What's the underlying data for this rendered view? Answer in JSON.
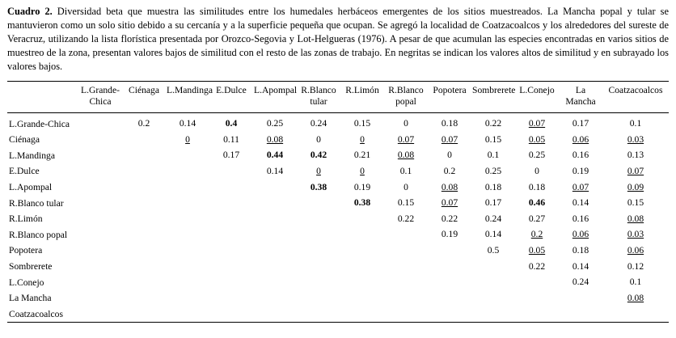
{
  "caption": {
    "label": "Cuadro 2.",
    "text": "Diversidad beta que muestra las similitudes entre los humedales herbáceos emergentes de los sitios muestreados. La Mancha popal y tular se mantuvieron como un solo sitio debido a su cercanía y a la superficie pequeña que ocupan. Se agregó la localidad de Coatzacoalcos y los alrededores del sureste de Veracruz, utilizando la lista florística presentada por Orozco-Segovia y Lot-Helgueras (1976). A pesar de que acumulan las especies encontradas en varios sitios de muestreo de la zona, presentan valores bajos de similitud con el resto de las zonas de trabajo. En negritas se indican los valores altos de similitud y en subrayado los valores bajos."
  },
  "table": {
    "emphasis_note": {
      "high": "negritas = valores altos de similitud",
      "low": "subrayado = valores bajos"
    },
    "columns": [
      "L.Grande-Chica",
      "Ciénaga",
      "L.Mandinga",
      "E.Dulce",
      "L.Apompal",
      "R.Blanco tular",
      "R.Limón",
      "R.Blanco popal",
      "Popotera",
      "Sombrerete",
      "L.Conejo",
      "La Mancha",
      "Coatzacoalcos"
    ],
    "rows": [
      {
        "label": "L.Grande-Chica",
        "cells": [
          null,
          "0.2",
          "0.14",
          {
            "v": "0.4",
            "e": "high"
          },
          "0.25",
          "0.24",
          "0.15",
          "0",
          "0.18",
          "0.22",
          {
            "v": "0.07",
            "e": "low"
          },
          "0.17",
          "0.1"
        ]
      },
      {
        "label": "Ciénaga",
        "cells": [
          null,
          null,
          {
            "v": "0",
            "e": "low"
          },
          "0.11",
          {
            "v": "0.08",
            "e": "low"
          },
          "0",
          {
            "v": "0",
            "e": "low"
          },
          {
            "v": "0.07",
            "e": "low"
          },
          {
            "v": "0.07",
            "e": "low"
          },
          "0.15",
          {
            "v": "0.05",
            "e": "low"
          },
          {
            "v": "0.06",
            "e": "low"
          },
          {
            "v": "0.03",
            "e": "low"
          }
        ]
      },
      {
        "label": "L.Mandinga",
        "cells": [
          null,
          null,
          null,
          "0.17",
          {
            "v": "0.44",
            "e": "high"
          },
          {
            "v": "0.42",
            "e": "high"
          },
          "0.21",
          {
            "v": "0.08",
            "e": "low"
          },
          "0",
          "0.1",
          "0.25",
          "0.16",
          "0.13"
        ]
      },
      {
        "label": "E.Dulce",
        "cells": [
          null,
          null,
          null,
          null,
          "0.14",
          {
            "v": "0",
            "e": "low"
          },
          {
            "v": "0",
            "e": "low"
          },
          "0.1",
          "0.2",
          "0.25",
          "0",
          "0.19",
          {
            "v": "0.07",
            "e": "low"
          }
        ]
      },
      {
        "label": "L.Apompal",
        "cells": [
          null,
          null,
          null,
          null,
          null,
          {
            "v": "0.38",
            "e": "high"
          },
          "0.19",
          "0",
          {
            "v": "0.08",
            "e": "low"
          },
          "0.18",
          "0.18",
          {
            "v": "0.07",
            "e": "low"
          },
          {
            "v": "0.09",
            "e": "low"
          }
        ]
      },
      {
        "label": "R.Blanco tular",
        "cells": [
          null,
          null,
          null,
          null,
          null,
          null,
          {
            "v": "0.38",
            "e": "high"
          },
          "0.15",
          {
            "v": "0.07",
            "e": "low"
          },
          "0.17",
          {
            "v": "0.46",
            "e": "high"
          },
          "0.14",
          "0.15"
        ]
      },
      {
        "label": "R.Limón",
        "cells": [
          null,
          null,
          null,
          null,
          null,
          null,
          null,
          "0.22",
          "0.22",
          "0.24",
          "0.27",
          "0.16",
          {
            "v": "0.08",
            "e": "low"
          }
        ]
      },
      {
        "label": "R.Blanco popal",
        "cells": [
          null,
          null,
          null,
          null,
          null,
          null,
          null,
          null,
          "0.19",
          "0.14",
          {
            "v": "0.2",
            "e": "low"
          },
          {
            "v": "0.06",
            "e": "low"
          },
          {
            "v": "0.03",
            "e": "low"
          }
        ]
      },
      {
        "label": "Popotera",
        "cells": [
          null,
          null,
          null,
          null,
          null,
          null,
          null,
          null,
          null,
          "0.5",
          {
            "v": "0.05",
            "e": "low"
          },
          "0.18",
          {
            "v": "0.06",
            "e": "low"
          }
        ]
      },
      {
        "label": "Sombrerete",
        "cells": [
          null,
          null,
          null,
          null,
          null,
          null,
          null,
          null,
          null,
          null,
          "0.22",
          "0.14",
          "0.12"
        ]
      },
      {
        "label": "L.Conejo",
        "cells": [
          null,
          null,
          null,
          null,
          null,
          null,
          null,
          null,
          null,
          null,
          null,
          "0.24",
          "0.1"
        ]
      },
      {
        "label": "La Mancha",
        "cells": [
          null,
          null,
          null,
          null,
          null,
          null,
          null,
          null,
          null,
          null,
          null,
          null,
          {
            "v": "0.08",
            "e": "low"
          }
        ]
      },
      {
        "label": "Coatzacoalcos",
        "cells": [
          null,
          null,
          null,
          null,
          null,
          null,
          null,
          null,
          null,
          null,
          null,
          null,
          null
        ]
      }
    ]
  }
}
